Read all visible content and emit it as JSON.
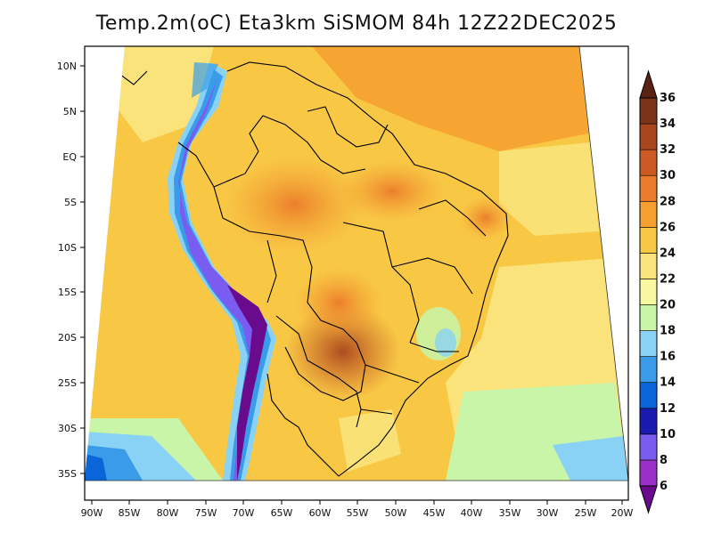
{
  "title": "Temp.2m(oC) Eta3km SiSMOM 84h 12Z22DEC2025",
  "map": {
    "lat_labels": [
      "10N",
      "5N",
      "EQ",
      "5S",
      "10S",
      "15S",
      "20S",
      "25S",
      "30S",
      "35S"
    ],
    "lon_labels": [
      "90W",
      "85W",
      "80W",
      "75W",
      "70W",
      "65W",
      "60W",
      "55W",
      "50W",
      "45W",
      "40W",
      "35W",
      "30W",
      "25W",
      "20W"
    ],
    "lon_range": [
      -90,
      -20
    ],
    "lat_range": [
      -38,
      12
    ]
  },
  "colorbar": {
    "labels": [
      "6",
      "8",
      "10",
      "12",
      "14",
      "16",
      "18",
      "20",
      "22",
      "24",
      "26",
      "28",
      "30",
      "32",
      "34",
      "36"
    ],
    "colors": [
      "#6a0a8c",
      "#9b30c8",
      "#7a5cf0",
      "#1a1ab0",
      "#0a66d8",
      "#3a9ce8",
      "#8ad2f5",
      "#c8f5a8",
      "#f8f8a0",
      "#fae37a",
      "#f8c845",
      "#f5a030",
      "#eb7a2a",
      "#cd5a22",
      "#a8461e",
      "#7a3218",
      "#5a2214"
    ]
  }
}
